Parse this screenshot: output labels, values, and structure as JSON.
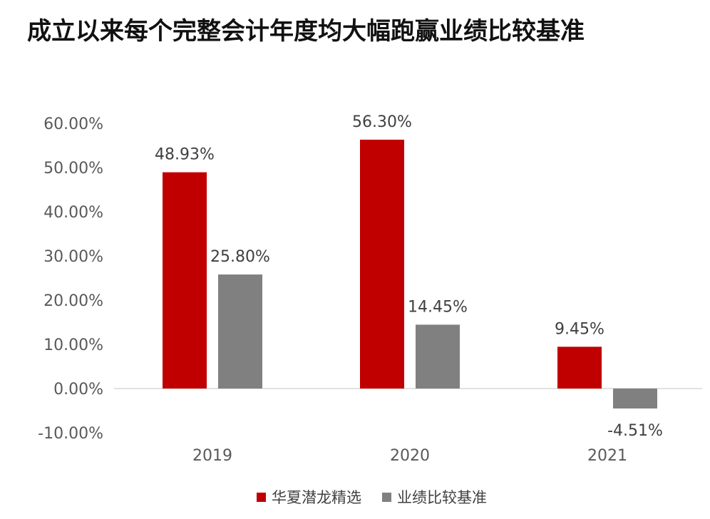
{
  "chart_data": {
    "type": "bar",
    "title": "成立以来每个完整会计年度均大幅跑赢业绩比较基准",
    "categories": [
      "2019",
      "2020",
      "2021"
    ],
    "series": [
      {
        "name": "华夏潜龙精选",
        "color": "#c00000",
        "values": [
          48.93,
          56.3,
          9.45
        ],
        "labels": [
          "48.93%",
          "56.30%",
          "9.45%"
        ]
      },
      {
        "name": "业绩比较基准",
        "color": "#808080",
        "values": [
          25.8,
          14.45,
          -4.51
        ],
        "labels": [
          "25.80%",
          "14.45%",
          "-4.51%"
        ]
      }
    ],
    "y_ticks": [
      60,
      50,
      40,
      30,
      20,
      10,
      0,
      -10
    ],
    "y_tick_labels": [
      "60.00%",
      "50.00%",
      "40.00%",
      "30.00%",
      "20.00%",
      "10.00%",
      "0.00%",
      "-10.00%"
    ],
    "ylim": [
      -10,
      60
    ],
    "xlabel": "",
    "ylabel": "",
    "grid": false,
    "legend_position": "bottom-center"
  }
}
